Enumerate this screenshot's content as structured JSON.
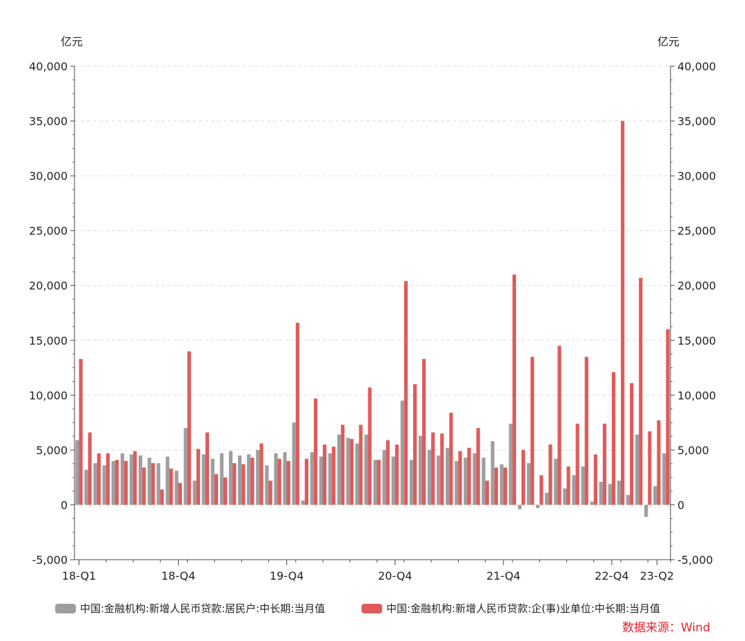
{
  "chart_data": {
    "type": "bar",
    "left_unit": "亿元",
    "right_unit": "亿元",
    "ylim": [
      -5000,
      40000
    ],
    "yticks": [
      -5000,
      0,
      5000,
      10000,
      15000,
      20000,
      25000,
      30000,
      35000,
      40000
    ],
    "ytick_labels": [
      "-5,000",
      "0",
      "5,000",
      "10,000",
      "15,000",
      "20,000",
      "25,000",
      "30,000",
      "35,000",
      "40,000"
    ],
    "xtick_labels": [
      {
        "label": "18-Q1",
        "index": 0
      },
      {
        "label": "18-Q4",
        "index": 11
      },
      {
        "label": "19-Q4",
        "index": 23
      },
      {
        "label": "20-Q4",
        "index": 35
      },
      {
        "label": "21-Q4",
        "index": 47
      },
      {
        "label": "22-Q4",
        "index": 59
      },
      {
        "label": "23-Q2",
        "index": 64
      }
    ],
    "grid": "horizontal dashed",
    "legend_position": "bottom",
    "series": [
      {
        "name": "中国:金融机构:新增人民币贷款:居民户:中长期:当月值",
        "color": "#9e9e9e",
        "values": [
          5900,
          3200,
          3800,
          3600,
          4000,
          4700,
          4600,
          4500,
          4300,
          3800,
          4400,
          3100,
          7000,
          2200,
          4600,
          4200,
          4700,
          4900,
          4500,
          4600,
          5000,
          3600,
          4700,
          4800,
          7500,
          400,
          4800,
          4400,
          4700,
          6400,
          6100,
          5600,
          6400,
          4100,
          5000,
          4400,
          9500,
          4100,
          6300,
          5000,
          4500,
          5200,
          4000,
          4300,
          4700,
          4300,
          5800,
          3700,
          7400,
          -400,
          3800,
          -300,
          1100,
          4200,
          1500,
          2700,
          3500,
          300,
          2100,
          1900,
          2200,
          900,
          6400,
          -1100,
          1700,
          4700
        ]
      },
      {
        "name": "中国:金融机构:新增人民币贷款:企(事)业单位:中长期:当月值",
        "color": "#e05a5a",
        "values": [
          13300,
          6600,
          4700,
          4700,
          4100,
          4000,
          4900,
          3400,
          3800,
          1400,
          3300,
          2000,
          14000,
          5100,
          6600,
          2800,
          2500,
          3800,
          3700,
          4300,
          5600,
          2200,
          4200,
          4000,
          16600,
          4200,
          9700,
          5500,
          5300,
          7300,
          6000,
          7300,
          10700,
          4100,
          5900,
          5500,
          20400,
          11000,
          13300,
          6600,
          6500,
          8400,
          4900,
          5200,
          7000,
          2200,
          3400,
          3400,
          21000,
          5000,
          13500,
          2700,
          5500,
          14500,
          3500,
          7400,
          13500,
          4600,
          7400,
          12100,
          35000,
          11100,
          20700,
          6700,
          7700,
          16000
        ]
      }
    ]
  },
  "source": "数据来源：Wind"
}
